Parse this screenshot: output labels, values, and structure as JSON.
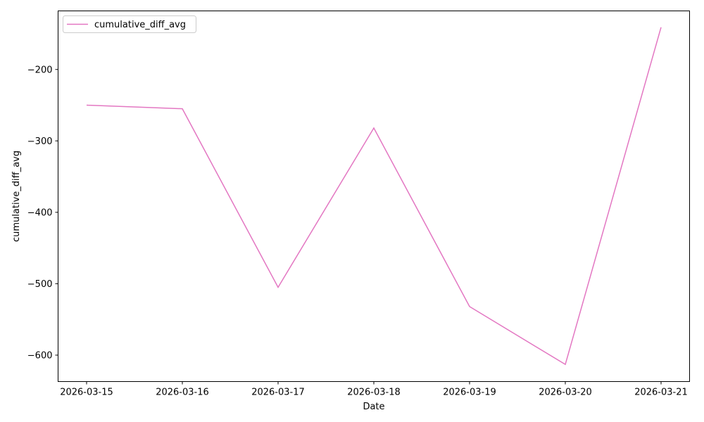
{
  "chart_data": {
    "type": "line",
    "title": "",
    "xlabel": "Date",
    "ylabel": "cumulative_diff_avg",
    "x": [
      "2026-03-15",
      "2026-03-16",
      "2026-03-17",
      "2026-03-18",
      "2026-03-19",
      "2026-03-20",
      "2026-03-21"
    ],
    "series": [
      {
        "name": "cumulative_diff_avg",
        "color": "#e377c2",
        "values": [
          -250,
          -255,
          -505,
          -282,
          -532,
          -613,
          -141
        ]
      }
    ],
    "yticks": [
      -600,
      -500,
      -400,
      -300,
      -200
    ],
    "ytick_labels": [
      "−600",
      "−500",
      "−400",
      "−300",
      "−200"
    ],
    "ylim": [
      -637,
      -118
    ],
    "grid": false,
    "legend": "upper-left"
  }
}
